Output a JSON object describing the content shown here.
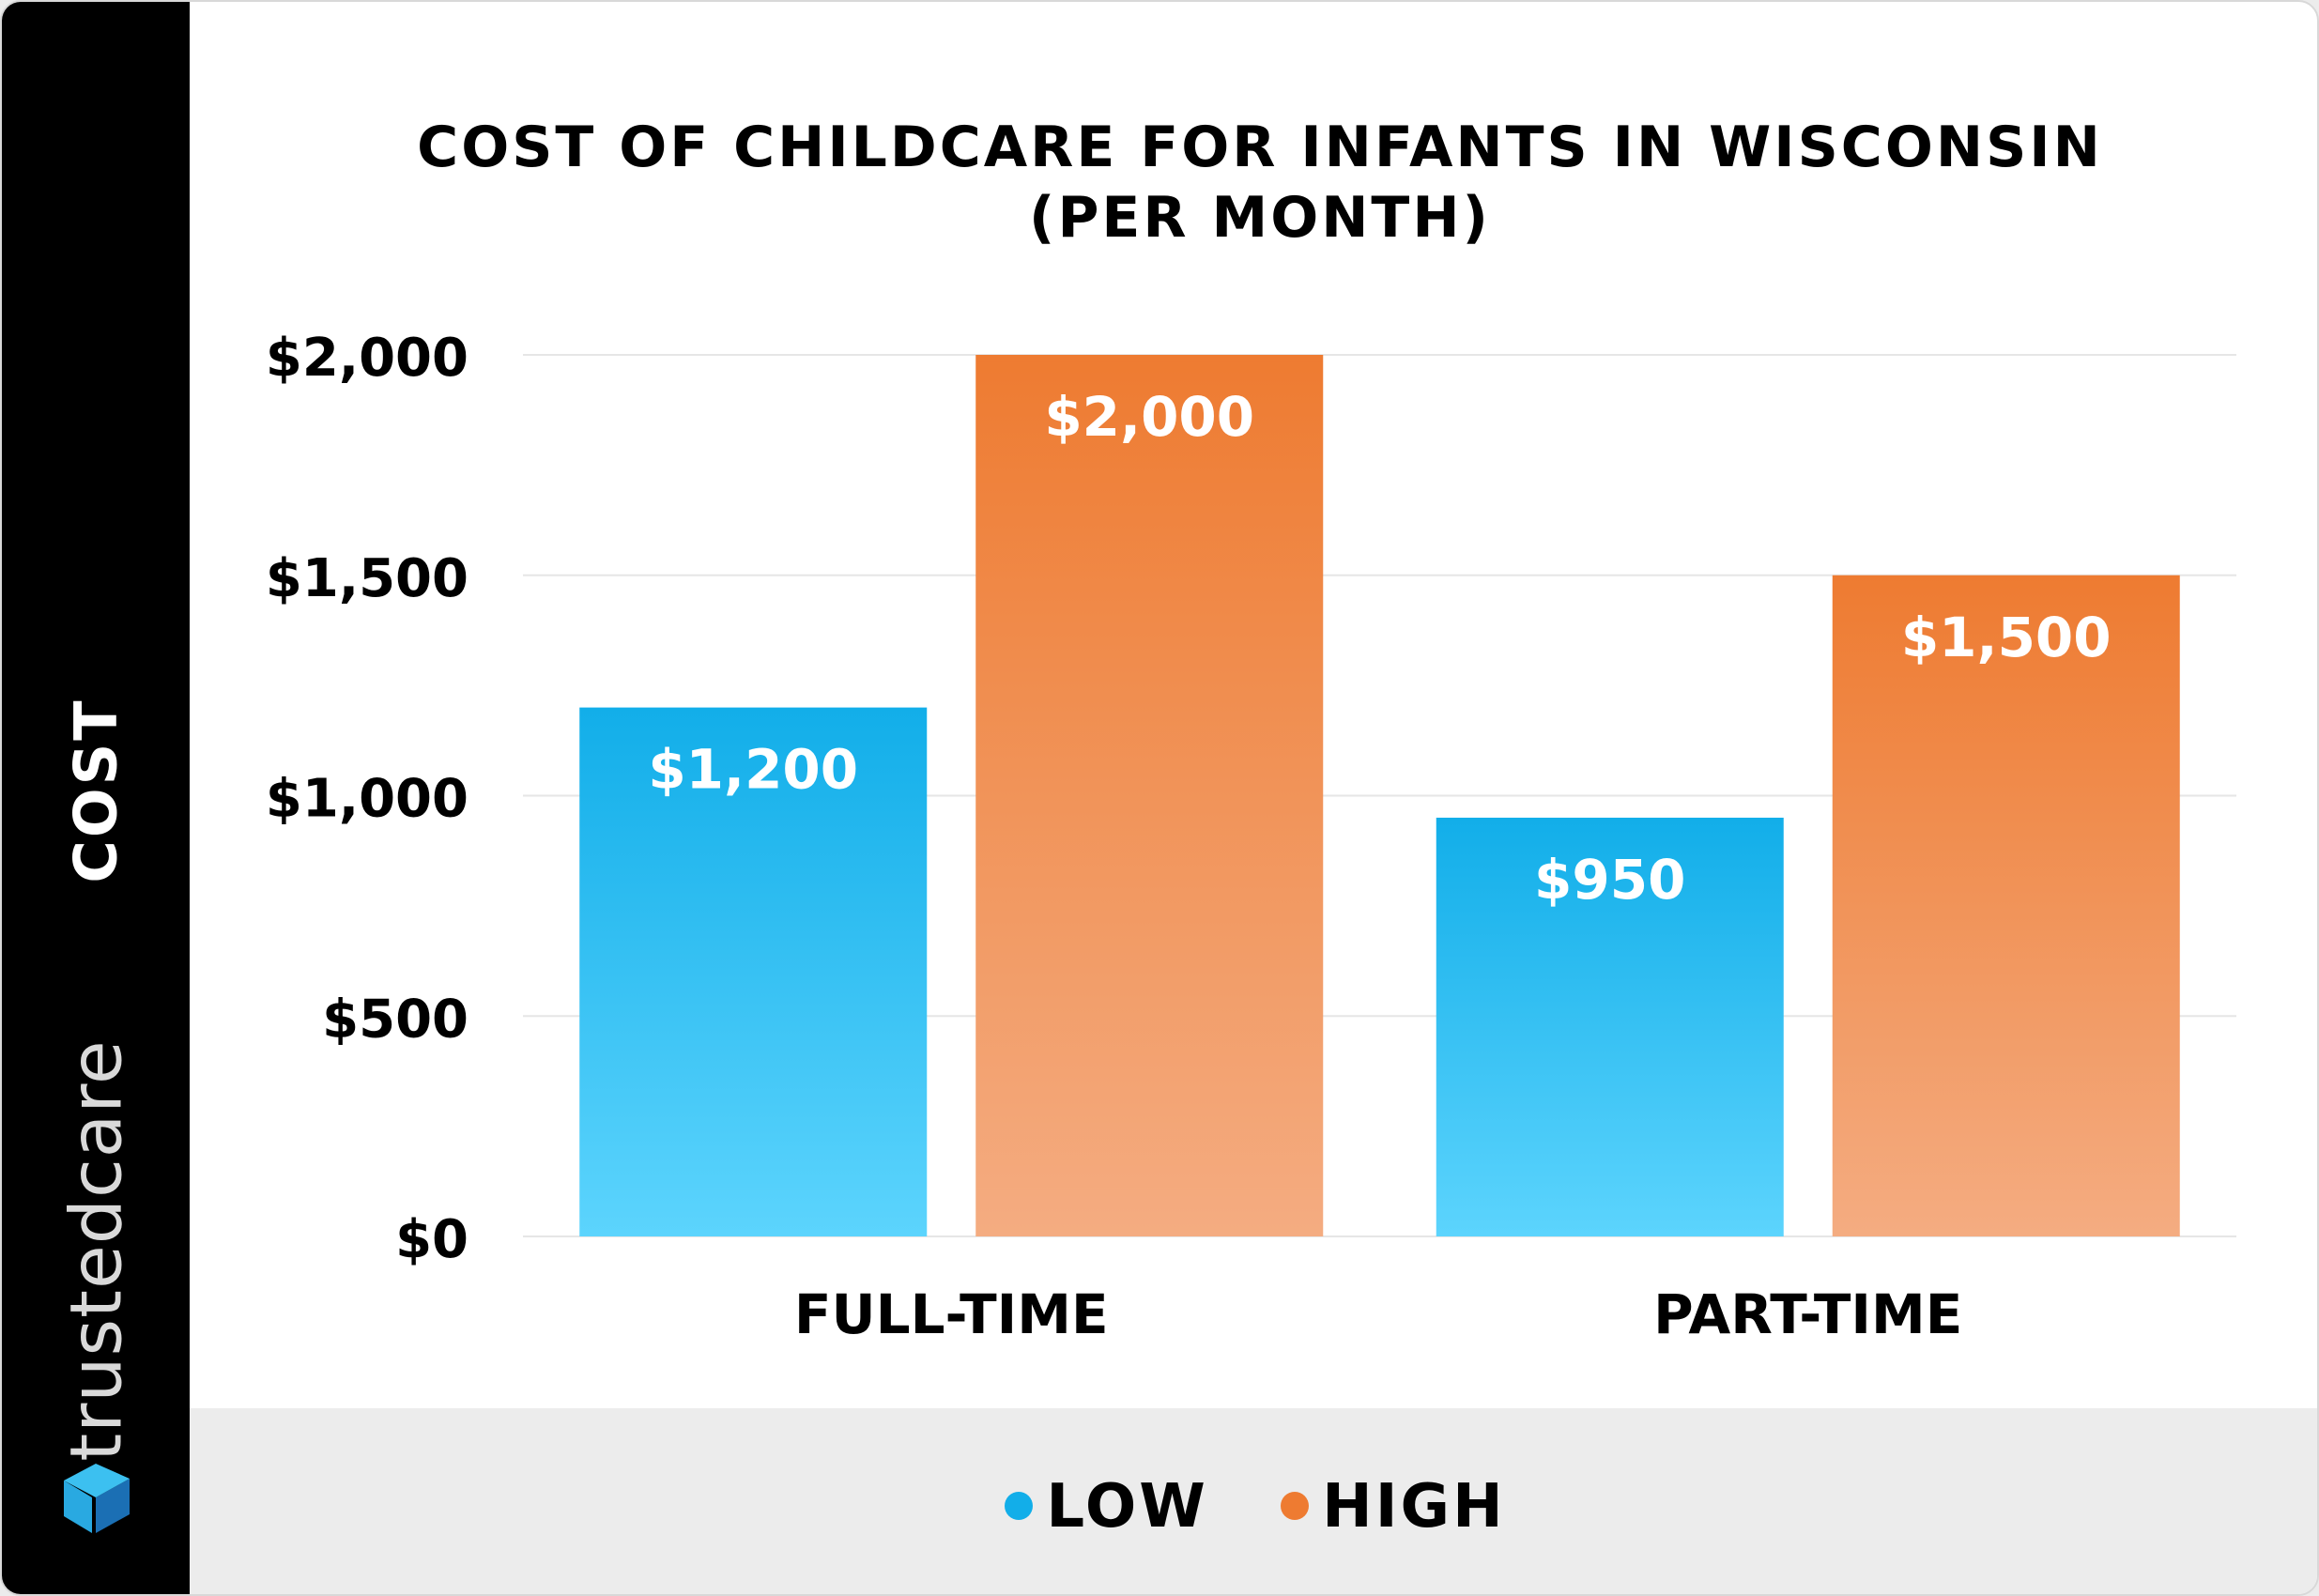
{
  "brand": {
    "name": "trustedcare"
  },
  "colors": {
    "low_top": "#12aee9",
    "low_bottom": "#5cd4fd",
    "high_top": "#ee7b31",
    "high_bottom": "#f4ac81",
    "gridline": "#e6e6e6",
    "text": "#000000"
  },
  "chart_data": {
    "type": "bar",
    "title": "COST OF CHILDCARE FOR INFANTS IN WISCONSIN",
    "subtitle": "(PER MONTH)",
    "xlabel": "",
    "ylabel": "COST",
    "categories": [
      "FULL-TIME",
      "PART-TIME"
    ],
    "series": [
      {
        "name": "LOW",
        "values": [
          1200,
          950
        ],
        "labels": [
          "$1,200",
          "$950"
        ],
        "color": "#12aee9"
      },
      {
        "name": "HIGH",
        "values": [
          2000,
          1500
        ],
        "labels": [
          "$2,000",
          "$1,500"
        ],
        "color": "#ee7b31"
      }
    ],
    "yticks": [
      0,
      500,
      1000,
      1500,
      2000
    ],
    "ytick_labels": [
      "$0",
      "$500",
      "$1,000",
      "$1,500",
      "$2,000"
    ],
    "ylim": [
      0,
      2000
    ],
    "grid": true,
    "legend": "bottom-center"
  }
}
